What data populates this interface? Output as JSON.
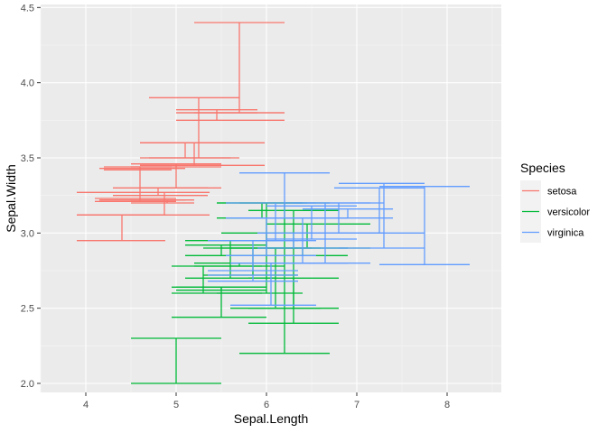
{
  "chart_data": {
    "type": "errorbar",
    "xlabel": "Sepal.Length",
    "ylabel": "Sepal.Width",
    "xlim": [
      3.5,
      8.6
    ],
    "ylim": [
      1.94,
      4.52
    ],
    "x_ticks": [
      4,
      5,
      6,
      7,
      8
    ],
    "y_ticks": [
      2.0,
      2.5,
      3.0,
      3.5,
      4.0,
      4.5
    ],
    "x_tick_labels": [
      "4",
      "5",
      "6",
      "7",
      "8"
    ],
    "y_tick_labels": [
      "2.0",
      "2.5",
      "3.0",
      "3.5",
      "4.0",
      "4.5"
    ],
    "grid": true,
    "legend_position": "right",
    "legend_title": "Species",
    "colors": {
      "setosa": "#F8766D",
      "versicolor": "#00BA38",
      "virginica": "#619CFF"
    },
    "series": [
      {
        "name": "setosa",
        "color": "#F8766D",
        "segments": [
          {
            "x": 5.7,
            "ymin": 3.8,
            "ymax": 4.4,
            "xmin": 5.2,
            "xmax": 6.2
          },
          {
            "x": 5.25,
            "ymin": 3.5,
            "ymax": 3.9,
            "xmin": 4.7,
            "xmax": 5.7
          },
          {
            "x": 5.45,
            "ymin": 3.8,
            "ymax": 3.82,
            "xmin": 5.0,
            "xmax": 5.9
          },
          {
            "x": 5.45,
            "ymin": 3.75,
            "ymax": 3.8,
            "xmin": 5.0,
            "xmax": 6.2
          },
          {
            "x": 5.2,
            "ymin": 3.45,
            "ymax": 3.6,
            "xmin": 4.6,
            "xmax": 5.98
          },
          {
            "x": 5.1,
            "ymin": 3.5,
            "ymax": 3.6,
            "xmin": 4.6,
            "xmax": 5.6
          },
          {
            "x": 5.0,
            "ymin": 3.3,
            "ymax": 3.45,
            "xmin": 4.6,
            "xmax": 5.5
          },
          {
            "x": 5.0,
            "ymin": 3.44,
            "ymax": 3.46,
            "xmin": 4.5,
            "xmax": 5.5
          },
          {
            "x": 4.6,
            "ymin": 3.22,
            "ymax": 3.43,
            "xmin": 4.15,
            "xmax": 5.1
          },
          {
            "x": 4.6,
            "ymin": 3.42,
            "ymax": 3.44,
            "xmin": 4.2,
            "xmax": 4.95
          },
          {
            "x": 4.8,
            "ymin": 3.25,
            "ymax": 3.3,
            "xmin": 4.3,
            "xmax": 5.35
          },
          {
            "x": 4.9,
            "ymin": 3.2,
            "ymax": 3.22,
            "xmin": 4.5,
            "xmax": 5.2
          },
          {
            "x": 4.87,
            "ymin": 3.12,
            "ymax": 3.27,
            "xmin": 3.9,
            "xmax": 5.37
          },
          {
            "x": 4.6,
            "ymin": 3.21,
            "ymax": 3.23,
            "xmin": 4.1,
            "xmax": 5.0
          },
          {
            "x": 4.4,
            "ymin": 2.95,
            "ymax": 3.12,
            "xmin": 3.9,
            "xmax": 4.88
          }
        ]
      },
      {
        "name": "versicolor",
        "color": "#00BA38",
        "segments": [
          {
            "x": 6.2,
            "ymin": 2.2,
            "ymax": 3.2,
            "xmin": 5.7,
            "xmax": 6.7
          },
          {
            "x": 6.3,
            "ymin": 2.4,
            "ymax": 3.15,
            "xmin": 5.8,
            "xmax": 6.8
          },
          {
            "x": 6.0,
            "ymin": 2.6,
            "ymax": 3.2,
            "xmin": 5.45,
            "xmax": 6.4
          },
          {
            "x": 5.95,
            "ymin": 3.1,
            "ymax": 3.2,
            "xmin": 5.45,
            "xmax": 6.45
          },
          {
            "x": 6.45,
            "ymin": 2.9,
            "ymax": 3.06,
            "xmin": 6.0,
            "xmax": 7.15
          },
          {
            "x": 5.5,
            "ymin": 2.44,
            "ymax": 2.64,
            "xmin": 4.95,
            "xmax": 6.0
          },
          {
            "x": 5.5,
            "ymin": 2.62,
            "ymax": 2.64,
            "xmin": 5.0,
            "xmax": 6.0
          },
          {
            "x": 5.0,
            "ymin": 2.0,
            "ymax": 2.3,
            "xmin": 4.5,
            "xmax": 5.5
          },
          {
            "x": 5.5,
            "ymin": 2.85,
            "ymax": 2.92,
            "xmin": 5.1,
            "xmax": 6.0
          },
          {
            "x": 5.6,
            "ymin": 2.7,
            "ymax": 2.95,
            "xmin": 5.1,
            "xmax": 6.1
          },
          {
            "x": 5.7,
            "ymin": 2.78,
            "ymax": 2.8,
            "xmin": 5.2,
            "xmax": 6.2
          },
          {
            "x": 5.85,
            "ymin": 2.72,
            "ymax": 2.9,
            "xmin": 5.3,
            "xmax": 6.35
          },
          {
            "x": 6.0,
            "ymin": 2.9,
            "ymax": 3.0,
            "xmin": 5.5,
            "xmax": 6.5
          },
          {
            "x": 6.1,
            "ymin": 2.5,
            "ymax": 2.9,
            "xmin": 5.6,
            "xmax": 6.6
          },
          {
            "x": 6.3,
            "ymin": 2.5,
            "ymax": 2.7,
            "xmin": 5.8,
            "xmax": 6.8
          },
          {
            "x": 6.4,
            "ymin": 2.85,
            "ymax": 2.9,
            "xmin": 5.9,
            "xmax": 6.9
          },
          {
            "x": 5.3,
            "ymin": 2.6,
            "ymax": 2.78,
            "xmin": 4.95,
            "xmax": 5.95
          }
        ]
      },
      {
        "name": "virginica",
        "color": "#619CFF",
        "segments": [
          {
            "x": 7.75,
            "ymin": 2.79,
            "ymax": 3.31,
            "xmin": 7.25,
            "xmax": 8.25
          },
          {
            "x": 7.3,
            "ymin": 2.9,
            "ymax": 3.33,
            "xmin": 6.8,
            "xmax": 7.75
          },
          {
            "x": 7.25,
            "ymin": 3.0,
            "ymax": 3.3,
            "xmin": 6.75,
            "xmax": 7.75
          },
          {
            "x": 6.2,
            "ymin": 3.1,
            "ymax": 3.4,
            "xmin": 5.7,
            "xmax": 6.7
          },
          {
            "x": 6.65,
            "ymin": 2.8,
            "ymax": 3.2,
            "xmin": 6.2,
            "xmax": 7.15
          },
          {
            "x": 6.8,
            "ymin": 3.0,
            "ymax": 3.2,
            "xmin": 6.3,
            "xmax": 7.3
          },
          {
            "x": 6.5,
            "ymin": 2.96,
            "ymax": 3.18,
            "xmin": 6.0,
            "xmax": 7.0
          },
          {
            "x": 6.4,
            "ymin": 2.8,
            "ymax": 3.1,
            "xmin": 5.9,
            "xmax": 6.9
          },
          {
            "x": 6.1,
            "ymin": 2.95,
            "ymax": 3.2,
            "xmin": 5.55,
            "xmax": 6.55
          },
          {
            "x": 6.0,
            "ymin": 2.85,
            "ymax": 3.1,
            "xmin": 5.55,
            "xmax": 6.55
          },
          {
            "x": 6.05,
            "ymin": 2.52,
            "ymax": 2.8,
            "xmin": 5.6,
            "xmax": 6.55
          },
          {
            "x": 5.85,
            "ymin": 2.75,
            "ymax": 2.95,
            "xmin": 5.35,
            "xmax": 6.35
          },
          {
            "x": 5.85,
            "ymin": 2.68,
            "ymax": 2.72,
            "xmin": 5.35,
            "xmax": 6.35
          },
          {
            "x": 6.9,
            "ymin": 3.1,
            "ymax": 3.16,
            "xmin": 6.4,
            "xmax": 7.4
          },
          {
            "x": 6.3,
            "ymin": 2.9,
            "ymax": 3.0,
            "xmin": 5.9,
            "xmax": 6.9
          }
        ]
      }
    ]
  }
}
